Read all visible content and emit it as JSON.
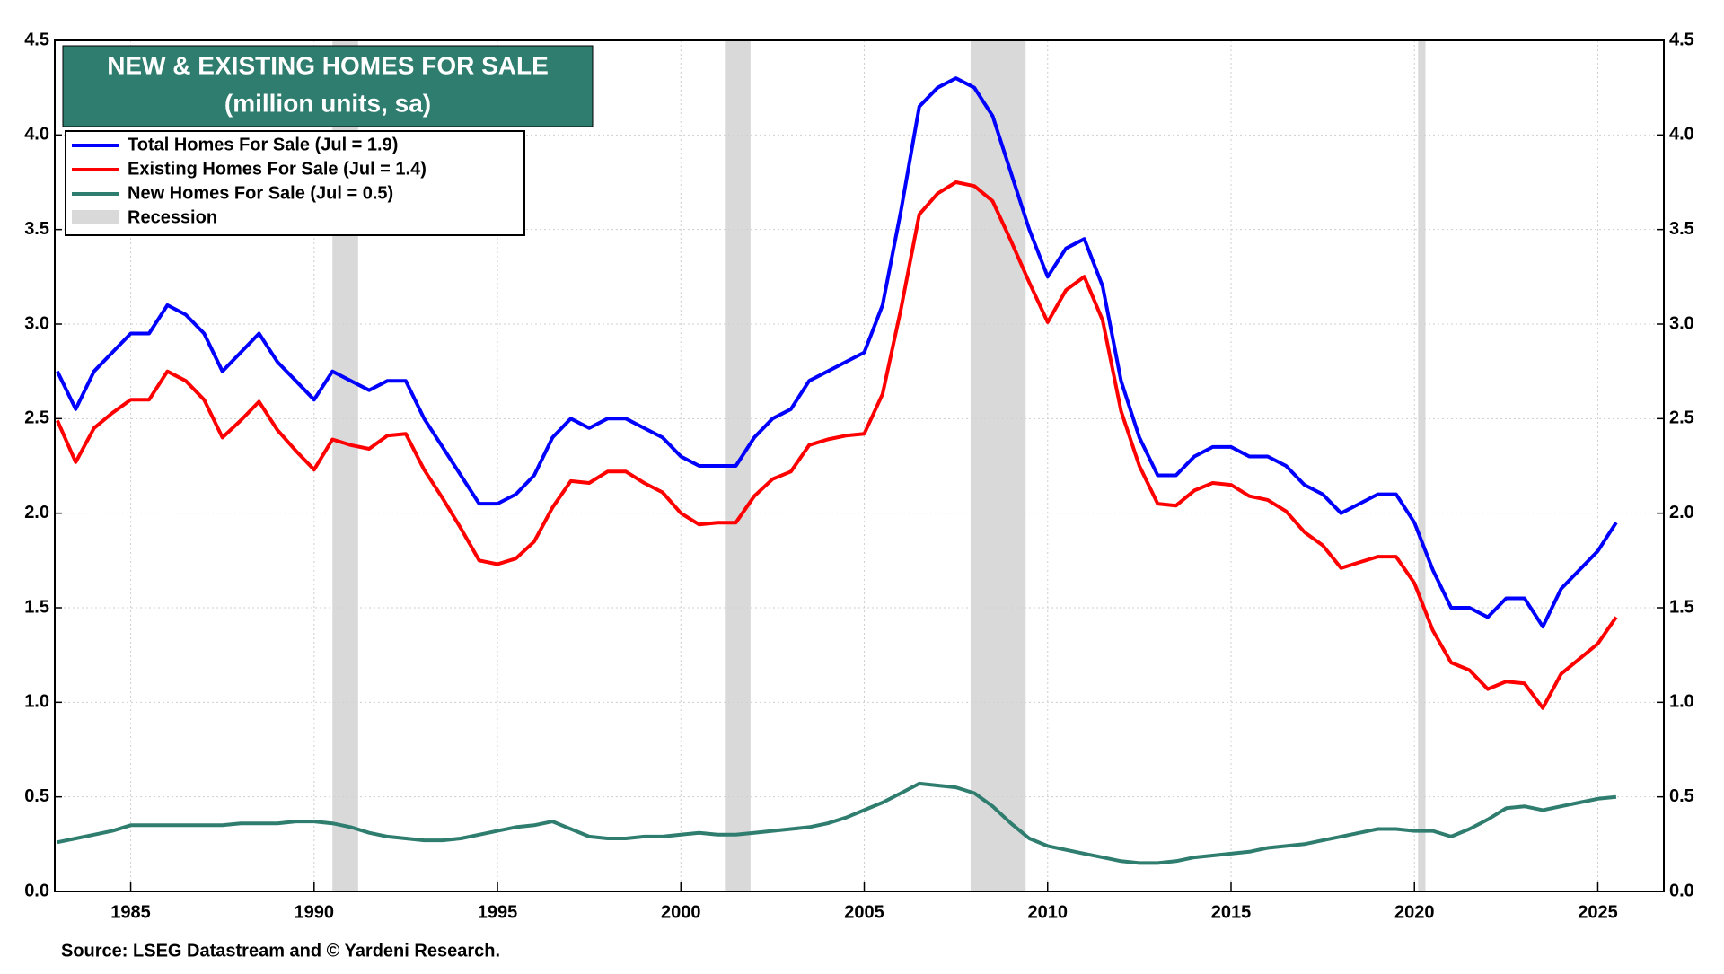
{
  "chart_data": {
    "type": "line",
    "title": "NEW & EXISTING HOMES FOR SALE",
    "subtitle": "(million units, sa)",
    "source": "Source: LSEG Datastream and © Yardeni Research.",
    "x": [
      1983.0,
      1983.5,
      1984.0,
      1984.5,
      1985.0,
      1985.5,
      1986.0,
      1986.5,
      1987.0,
      1987.5,
      1988.0,
      1988.5,
      1989.0,
      1989.5,
      1990.0,
      1990.5,
      1991.0,
      1991.5,
      1992.0,
      1992.5,
      1993.0,
      1993.5,
      1994.0,
      1994.5,
      1995.0,
      1995.5,
      1996.0,
      1996.5,
      1997.0,
      1997.5,
      1998.0,
      1998.5,
      1999.0,
      1999.5,
      2000.0,
      2000.5,
      2001.0,
      2001.5,
      2002.0,
      2002.5,
      2003.0,
      2003.5,
      2004.0,
      2004.5,
      2005.0,
      2005.5,
      2006.0,
      2006.5,
      2007.0,
      2007.5,
      2008.0,
      2008.5,
      2009.0,
      2009.5,
      2010.0,
      2010.5,
      2011.0,
      2011.5,
      2012.0,
      2012.5,
      2013.0,
      2013.5,
      2014.0,
      2014.5,
      2015.0,
      2015.5,
      2016.0,
      2016.5,
      2017.0,
      2017.5,
      2018.0,
      2018.5,
      2019.0,
      2019.5,
      2020.0,
      2020.5,
      2021.0,
      2021.5,
      2022.0,
      2022.5,
      2023.0,
      2023.5,
      2024.0,
      2024.5,
      2025.0,
      2025.5
    ],
    "series": [
      {
        "name": "Total Homes For Sale (Jul = 1.9)",
        "color": "#0000ff",
        "values": [
          2.75,
          2.55,
          2.75,
          2.85,
          2.95,
          2.95,
          3.1,
          3.05,
          2.95,
          2.75,
          2.85,
          2.95,
          2.8,
          2.7,
          2.6,
          2.75,
          2.7,
          2.65,
          2.7,
          2.7,
          2.5,
          2.35,
          2.2,
          2.05,
          2.05,
          2.1,
          2.2,
          2.4,
          2.5,
          2.45,
          2.5,
          2.5,
          2.45,
          2.4,
          2.3,
          2.25,
          2.25,
          2.25,
          2.4,
          2.5,
          2.55,
          2.7,
          2.75,
          2.8,
          2.85,
          3.1,
          3.6,
          4.15,
          4.25,
          4.3,
          4.25,
          4.1,
          3.8,
          3.5,
          3.25,
          3.4,
          3.45,
          3.2,
          2.7,
          2.4,
          2.2,
          2.2,
          2.3,
          2.35,
          2.35,
          2.3,
          2.3,
          2.25,
          2.15,
          2.1,
          2.0,
          2.05,
          2.1,
          2.1,
          1.95,
          1.7,
          1.5,
          1.5,
          1.45,
          1.55,
          1.55,
          1.4,
          1.6,
          1.7,
          1.8,
          1.95
        ]
      },
      {
        "name": "Existing Homes For Sale (Jul = 1.4)",
        "color": "#ff0000",
        "values": [
          2.49,
          2.27,
          2.45,
          2.53,
          2.6,
          2.6,
          2.75,
          2.7,
          2.6,
          2.4,
          2.49,
          2.59,
          2.44,
          2.33,
          2.23,
          2.39,
          2.36,
          2.34,
          2.41,
          2.42,
          2.23,
          2.08,
          1.92,
          1.75,
          1.73,
          1.76,
          1.85,
          2.03,
          2.17,
          2.16,
          2.22,
          2.22,
          2.16,
          2.11,
          2.0,
          1.94,
          1.95,
          1.95,
          2.09,
          2.18,
          2.22,
          2.36,
          2.39,
          2.41,
          2.42,
          2.63,
          3.08,
          3.58,
          3.69,
          3.75,
          3.73,
          3.65,
          3.44,
          3.22,
          3.01,
          3.18,
          3.25,
          3.02,
          2.54,
          2.25,
          2.05,
          2.04,
          2.12,
          2.16,
          2.15,
          2.09,
          2.07,
          2.01,
          1.9,
          1.83,
          1.71,
          1.74,
          1.77,
          1.77,
          1.63,
          1.38,
          1.21,
          1.17,
          1.07,
          1.11,
          1.1,
          0.97,
          1.15,
          1.23,
          1.31,
          1.45
        ]
      },
      {
        "name": "New Homes For Sale (Jul = 0.5)",
        "color": "#2e7d6e",
        "values": [
          0.26,
          0.28,
          0.3,
          0.32,
          0.35,
          0.35,
          0.35,
          0.35,
          0.35,
          0.35,
          0.36,
          0.36,
          0.36,
          0.37,
          0.37,
          0.36,
          0.34,
          0.31,
          0.29,
          0.28,
          0.27,
          0.27,
          0.28,
          0.3,
          0.32,
          0.34,
          0.35,
          0.37,
          0.33,
          0.29,
          0.28,
          0.28,
          0.29,
          0.29,
          0.3,
          0.31,
          0.3,
          0.3,
          0.31,
          0.32,
          0.33,
          0.34,
          0.36,
          0.39,
          0.43,
          0.47,
          0.52,
          0.57,
          0.56,
          0.55,
          0.52,
          0.45,
          0.36,
          0.28,
          0.24,
          0.22,
          0.2,
          0.18,
          0.16,
          0.15,
          0.15,
          0.16,
          0.18,
          0.19,
          0.2,
          0.21,
          0.23,
          0.24,
          0.25,
          0.27,
          0.29,
          0.31,
          0.33,
          0.33,
          0.32,
          0.32,
          0.29,
          0.33,
          0.38,
          0.44,
          0.45,
          0.43,
          0.45,
          0.47,
          0.49,
          0.5
        ]
      }
    ],
    "recession_label": "Recession",
    "recession_color": "#d9d9d9",
    "recessions": [
      [
        1990.5,
        1991.2
      ],
      [
        2001.2,
        2001.9
      ],
      [
        2007.9,
        2009.4
      ],
      [
        2020.1,
        2020.3
      ]
    ],
    "xlim": [
      1982.93,
      2026.8
    ],
    "xticks": [
      1985,
      1990,
      1995,
      2000,
      2005,
      2010,
      2015,
      2020,
      2025
    ],
    "ylim": [
      0,
      4.5
    ],
    "yticks": [
      {
        "value": 0,
        "label": "0.0"
      },
      {
        "value": 0.5,
        "label": "0.5"
      },
      {
        "value": 1,
        "label": "1.0"
      },
      {
        "value": 1.5,
        "label": "1.5"
      },
      {
        "value": 2,
        "label": "2.0"
      },
      {
        "value": 2.5,
        "label": "2.5"
      },
      {
        "value": 3,
        "label": "3.0"
      },
      {
        "value": 3.5,
        "label": "3.5"
      },
      {
        "value": 4,
        "label": "4.0"
      },
      {
        "value": 4.5,
        "label": "4.5"
      }
    ],
    "y2lim": [
      0,
      4.5
    ],
    "y2ticks": [
      {
        "value": 0,
        "label": "0.0"
      },
      {
        "value": 0.5,
        "label": "0.5"
      },
      {
        "value": 1,
        "label": "1.0"
      },
      {
        "value": 1.5,
        "label": "1.5"
      },
      {
        "value": 2,
        "label": "2.0"
      },
      {
        "value": 2.5,
        "label": "2.5"
      },
      {
        "value": 3,
        "label": "3.0"
      },
      {
        "value": 3.5,
        "label": "3.5"
      },
      {
        "value": 4,
        "label": "4.0"
      },
      {
        "value": 4.5,
        "label": "4.5"
      }
    ],
    "grid": true,
    "legend": "upper left"
  }
}
